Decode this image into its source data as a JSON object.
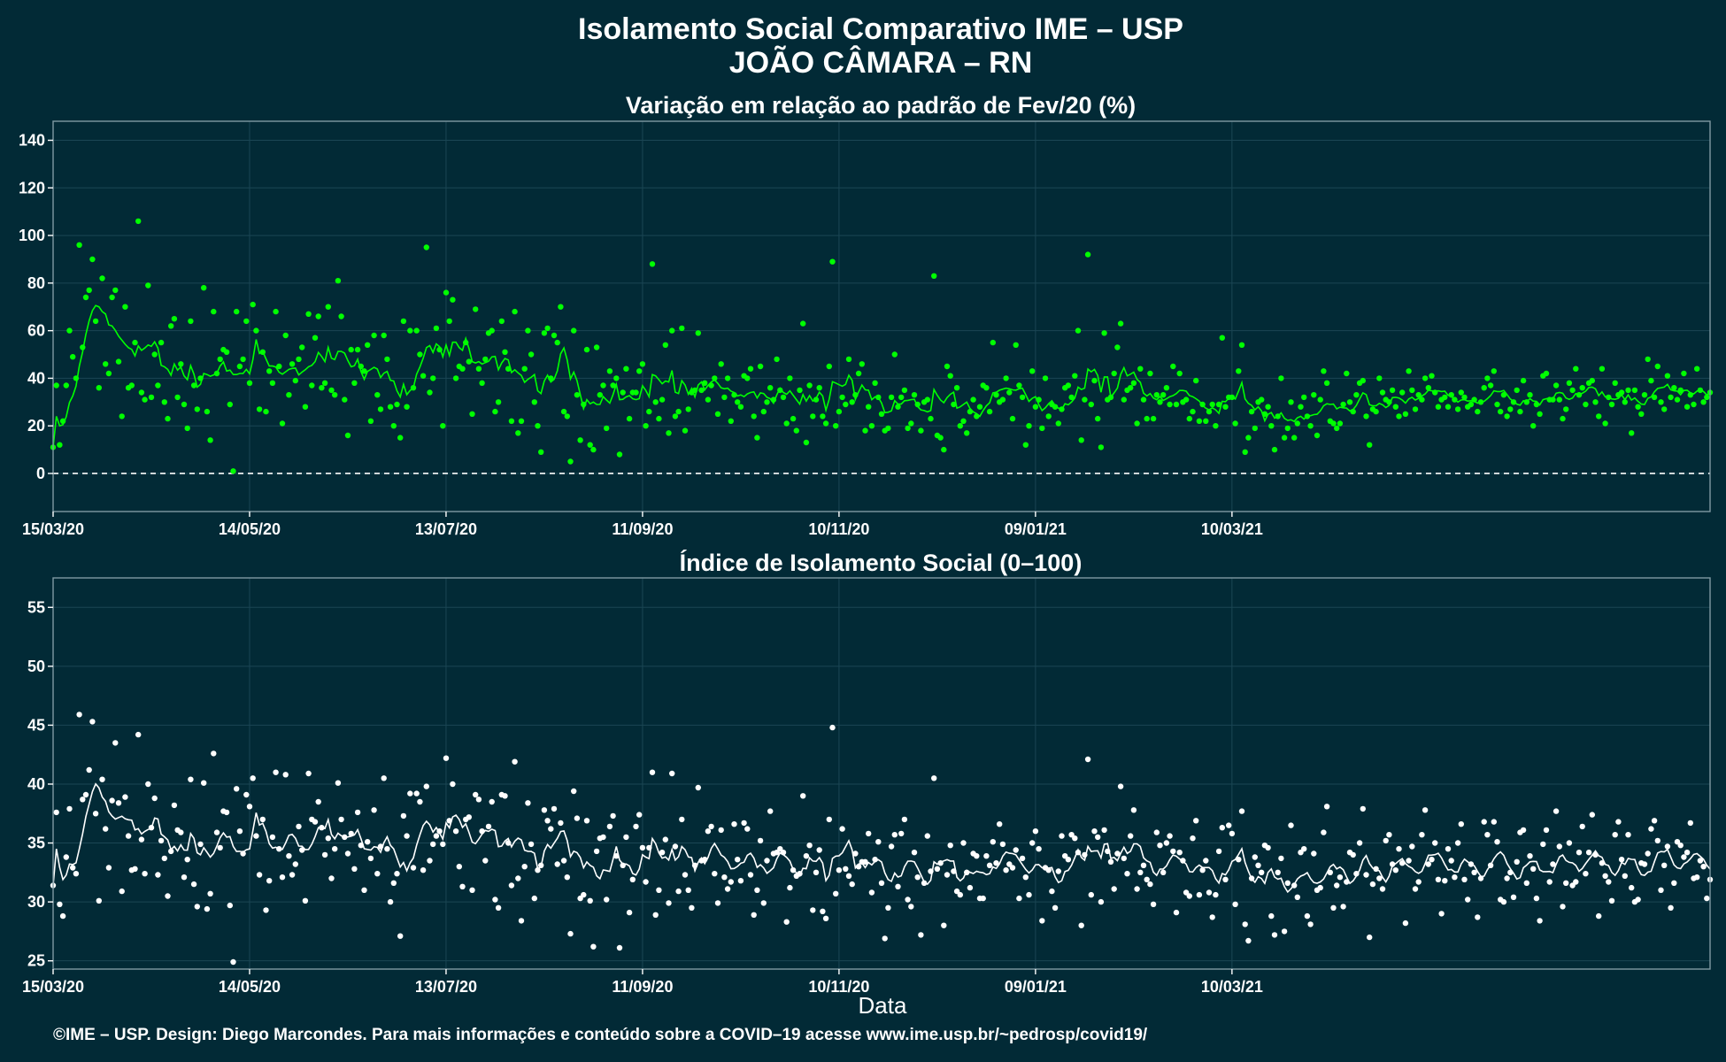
{
  "header": {
    "title": "Isolamento Social Comparativo IME – USP",
    "location": "JOÃO CÂMARA – RN"
  },
  "footer": {
    "caption": "©IME – USP. Design: Diego Marcondes. Para mais informações e conteúdo sobre a COVID–19 acesse www.ime.usp.br/~pedrosp/covid19/"
  },
  "colors": {
    "background": "#022a36",
    "panel_border": "#7f9aa3",
    "grid": "#1b4654",
    "top_series": "#00ff00",
    "top_negative": "#ff0000",
    "bottom_series": "#ffffff"
  },
  "chart_data": [
    {
      "type": "scatter",
      "title": "Variação em relação ao padrão de Fev/20 (%)",
      "xlabel": "",
      "ylabel": "",
      "ylim": [
        -16,
        148
      ],
      "yticks": [
        0,
        20,
        40,
        60,
        80,
        100,
        120,
        140
      ],
      "xticks": [
        "15/03/20",
        "14/05/20",
        "13/07/20",
        "11/09/20",
        "10/11/20",
        "09/01/21",
        "10/03/21"
      ],
      "reference_line": 0,
      "grid": true,
      "series": [
        {
          "x_start": "15/03/20",
          "step_days": 1,
          "values": [
            11,
            37,
            12,
            22,
            37,
            60,
            49,
            40,
            96,
            53,
            74,
            77,
            90,
            64,
            36,
            82,
            46,
            42,
            74,
            77,
            47,
            24,
            70,
            36,
            37,
            55,
            106,
            34,
            31,
            79,
            32,
            50,
            37,
            55,
            30,
            23,
            62,
            65,
            32,
            46,
            29,
            19,
            64,
            37,
            27,
            40,
            78,
            26,
            14,
            68,
            42,
            48,
            52,
            51,
            29,
            1,
            68,
            45,
            48,
            64,
            38,
            71,
            60,
            27,
            51,
            26,
            43,
            38,
            68,
            45,
            21,
            58,
            33,
            46,
            39,
            48,
            53,
            28,
            67,
            37,
            57,
            66,
            36,
            38,
            70,
            35,
            33,
            81,
            66,
            31,
            16,
            52,
            38,
            52,
            45,
            43,
            54,
            22,
            58,
            33,
            27,
            58,
            48,
            28,
            20,
            29,
            15,
            64,
            28,
            60,
            36,
            60,
            50,
            41,
            95,
            34,
            40,
            61,
            52,
            20,
            76,
            64,
            73,
            40,
            45,
            44,
            55,
            47,
            25,
            69,
            44,
            38,
            48,
            59,
            60,
            26,
            30,
            64,
            51,
            44,
            22,
            68,
            17,
            22,
            44,
            60,
            50,
            30,
            20,
            9,
            59,
            61,
            40,
            58,
            55,
            70,
            26,
            24,
            5,
            60,
            33,
            14,
            29,
            52,
            12,
            10,
            53,
            33,
            37,
            19,
            43,
            37,
            40,
            8,
            34,
            44,
            23,
            34,
            34,
            43,
            46,
            20,
            26,
            88,
            30,
            23,
            31,
            54,
            17,
            60,
            24,
            26,
            61,
            18,
            27,
            34,
            35,
            59,
            35,
            38,
            31,
            37,
            40,
            25,
            46,
            32,
            40,
            22,
            33,
            30,
            28,
            41,
            40,
            44,
            24,
            15,
            45,
            26,
            30,
            36,
            31,
            48,
            35,
            32,
            21,
            40,
            23,
            18,
            35,
            63,
            13,
            37,
            24,
            31,
            36,
            24,
            21,
            45,
            89,
            20,
            26,
            32,
            29,
            48,
            30,
            33,
            42,
            46,
            18,
            28,
            20,
            38,
            32,
            25,
            18,
            19,
            32,
            50,
            28,
            32,
            35,
            19,
            21,
            33,
            29,
            18,
            30,
            31,
            23,
            83,
            16,
            15,
            10,
            45,
            41,
            29,
            36,
            20,
            22,
            17,
            26,
            31,
            24,
            28,
            37,
            36,
            26,
            55,
            33,
            30,
            31,
            40,
            34,
            23,
            54,
            37,
            32,
            12,
            20,
            43,
            28,
            31,
            19,
            40,
            24,
            29,
            28,
            21,
            27,
            36,
            37,
            32,
            41,
            60,
            14,
            31,
            92,
            29,
            39,
            23,
            11,
            59,
            31,
            32,
            42,
            53,
            63,
            31,
            35,
            36,
            38,
            21,
            44,
            31,
            23,
            42,
            23,
            33,
            30,
            33,
            36,
            29,
            45,
            29,
            42,
            30,
            31,
            23,
            26,
            39,
            22,
            29,
            22,
            26,
            29,
            20,
            29,
            57,
            28,
            32,
            32,
            21,
            43,
            54,
            9,
            15,
            26,
            19,
            30,
            31,
            25,
            28,
            20,
            10,
            24,
            40,
            15,
            19,
            30,
            15,
            21,
            28,
            32,
            24,
            20,
            33,
            16,
            31,
            43,
            38,
            22,
            21,
            19,
            21,
            29,
            42,
            30,
            26,
            33,
            38,
            39,
            24,
            12,
            27,
            26,
            40,
            34,
            31,
            30,
            35,
            28,
            24,
            34,
            25,
            43,
            35,
            27,
            33,
            31,
            40,
            36,
            41,
            34,
            28,
            31,
            32,
            28,
            33,
            31,
            27,
            34,
            32,
            28,
            29,
            31,
            26,
            30,
            36,
            40,
            37,
            43,
            29,
            26,
            33,
            24,
            27,
            30,
            35,
            26,
            39,
            30,
            33,
            20,
            29,
            25,
            41,
            42,
            31,
            31,
            37,
            31,
            23,
            27,
            38,
            35,
            44,
            33,
            36,
            29,
            38,
            39,
            30,
            24,
            44,
            21,
            32,
            29,
            38,
            33,
            34,
            30,
            35,
            17,
            35,
            28,
            25,
            33,
            48,
            39,
            32,
            45,
            30,
            27,
            41,
            32,
            36,
            31,
            35,
            42,
            28,
            33,
            29,
            44,
            35,
            30,
            32,
            34
          ]
        },
        {
          "name": "",
          "values": []
        }
      ]
    },
    {
      "type": "scatter",
      "title": "Índice de Isolamento Social (0–100)",
      "xlabel": "Data",
      "ylabel": "",
      "ylim": [
        24.3,
        57.5
      ],
      "yticks": [
        25,
        30,
        35,
        40,
        45,
        50,
        55
      ],
      "xticks": [
        "15/03/20",
        "14/05/20",
        "13/07/20",
        "11/09/20",
        "10/11/20",
        "09/01/21",
        "10/03/21"
      ],
      "grid": true
    }
  ]
}
